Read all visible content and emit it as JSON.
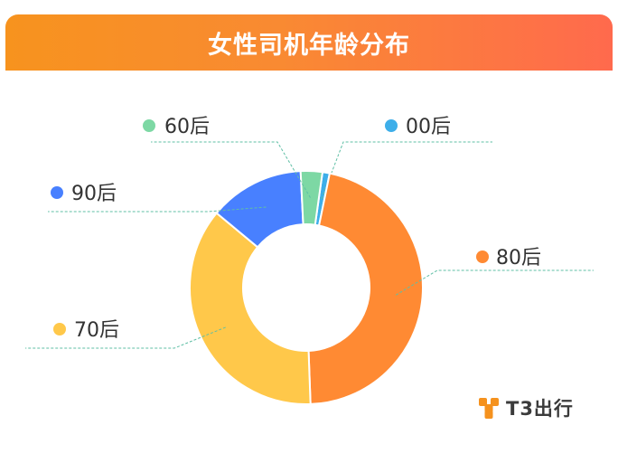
{
  "header": {
    "title": "女性司机年龄分布"
  },
  "chart_data": {
    "type": "donut",
    "title": "女性司机年龄分布",
    "series": [
      {
        "label": "00后",
        "value": 1,
        "color": "#3daee9"
      },
      {
        "label": "80后",
        "value": 46.2,
        "color": "#ff8a33"
      },
      {
        "label": "70后",
        "value": 36.6,
        "color": "#ffc84a"
      },
      {
        "label": "90后",
        "value": 13.2,
        "color": "#4880ff"
      },
      {
        "label": "60后",
        "value": 3,
        "color": "#7dd8a4"
      }
    ],
    "legend_placement": "around"
  },
  "logo": {
    "text": "T3出行",
    "color": "#f5921e"
  }
}
